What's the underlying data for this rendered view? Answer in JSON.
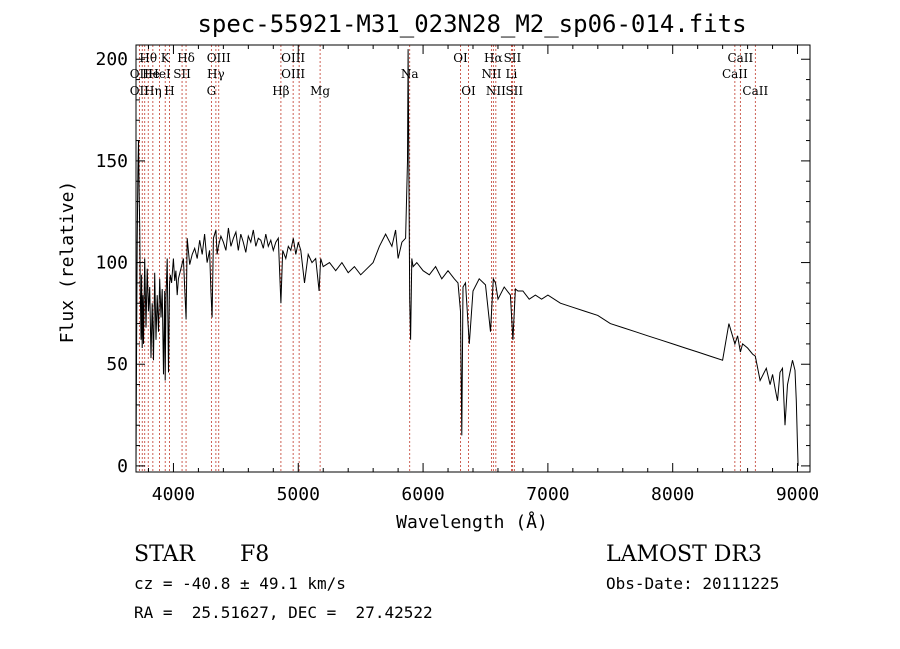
{
  "chart_data": {
    "type": "line",
    "title": "spec-55921-M31_023N28_M2_sp06-014.fits",
    "xlabel": "Wavelength (Å)",
    "ylabel": "Flux (relative)",
    "xlim": [
      3700,
      9100
    ],
    "ylim": [
      -3,
      207
    ],
    "xticks": [
      4000,
      5000,
      6000,
      7000,
      8000,
      9000
    ],
    "yticks": [
      0,
      50,
      100,
      150,
      200
    ],
    "series": [
      {
        "name": "flux",
        "x": [
          3700,
          3705,
          3710,
          3715,
          3720,
          3725,
          3730,
          3735,
          3740,
          3745,
          3750,
          3755,
          3760,
          3770,
          3780,
          3790,
          3800,
          3810,
          3820,
          3830,
          3840,
          3850,
          3860,
          3870,
          3880,
          3890,
          3900,
          3910,
          3920,
          3930,
          3934,
          3940,
          3950,
          3960,
          3968,
          3975,
          3985,
          4000,
          4010,
          4020,
          4030,
          4040,
          4060,
          4080,
          4101,
          4110,
          4130,
          4150,
          4170,
          4190,
          4210,
          4230,
          4250,
          4270,
          4290,
          4300,
          4310,
          4320,
          4340,
          4350,
          4360,
          4380,
          4400,
          4420,
          4440,
          4460,
          4480,
          4500,
          4520,
          4540,
          4560,
          4580,
          4600,
          4620,
          4640,
          4660,
          4680,
          4700,
          4720,
          4740,
          4760,
          4780,
          4800,
          4820,
          4840,
          4861,
          4875,
          4900,
          4920,
          4940,
          4960,
          4980,
          5000,
          5020,
          5050,
          5080,
          5110,
          5140,
          5167,
          5180,
          5200,
          5250,
          5300,
          5350,
          5400,
          5450,
          5500,
          5550,
          5600,
          5650,
          5700,
          5750,
          5780,
          5800,
          5830,
          5860,
          5875,
          5880,
          5893,
          5900,
          5910,
          5920,
          5950,
          6000,
          6050,
          6100,
          6150,
          6200,
          6250,
          6280,
          6300,
          6310,
          6320,
          6340,
          6370,
          6400,
          6450,
          6500,
          6540,
          6563,
          6580,
          6600,
          6650,
          6700,
          6720,
          6740,
          6760,
          6800,
          6850,
          6900,
          6950,
          7000,
          7100,
          7200,
          7300,
          7400,
          7500,
          7600,
          7700,
          7800,
          7900,
          8000,
          8100,
          8200,
          8300,
          8400,
          8450,
          8498,
          8520,
          8542,
          8560,
          8600,
          8640,
          8662,
          8700,
          8750,
          8780,
          8800,
          8820,
          8840,
          8860,
          8880,
          8900,
          8920,
          8940,
          8960,
          8980,
          8990,
          9000,
          9005
        ],
        "values": [
          0,
          60,
          110,
          145,
          160,
          135,
          118,
          82,
          62,
          94,
          58,
          84,
          60,
          102,
          68,
          97,
          76,
          88,
          53,
          80,
          52,
          95,
          62,
          84,
          66,
          92,
          73,
          87,
          45,
          86,
          42,
          83,
          102,
          46,
          89,
          94,
          90,
          102,
          91,
          96,
          84,
          92,
          97,
          102,
          72,
          112,
          99,
          104,
          107,
          102,
          111,
          104,
          114,
          100,
          106,
          86,
          73,
          112,
          116,
          104,
          108,
          113,
          110,
          106,
          117,
          108,
          112,
          115,
          106,
          114,
          110,
          105,
          113,
          110,
          116,
          108,
          112,
          111,
          107,
          114,
          108,
          111,
          106,
          110,
          112,
          80,
          106,
          102,
          108,
          106,
          112,
          104,
          110,
          106,
          90,
          104,
          100,
          102,
          86,
          102,
          98,
          100,
          96,
          100,
          95,
          98,
          94,
          97,
          100,
          108,
          114,
          108,
          116,
          102,
          110,
          112,
          150,
          205,
          82,
          62,
          102,
          98,
          100,
          96,
          94,
          98,
          92,
          96,
          92,
          90,
          76,
          15,
          88,
          90,
          60,
          86,
          92,
          89,
          66,
          92,
          90,
          82,
          88,
          84,
          62,
          87,
          86,
          86,
          82,
          84,
          82,
          84,
          80,
          78,
          76,
          74,
          70,
          68,
          66,
          64,
          62,
          60,
          58,
          56,
          54,
          52,
          70,
          60,
          64,
          56,
          60,
          58,
          55,
          54,
          42,
          48,
          40,
          45,
          38,
          32,
          46,
          48,
          20,
          40,
          46,
          52,
          47,
          32,
          10,
          0
        ]
      }
    ],
    "line_labels": [
      {
        "label": "OII",
        "wavelength": 3727,
        "row": 2
      },
      {
        "label": "Hθ",
        "wavelength": 3798,
        "row": 1
      },
      {
        "label": "OII",
        "wavelength": 3727,
        "row": 3
      },
      {
        "label": "He",
        "wavelength": 3820,
        "row": 2
      },
      {
        "label": "Hη",
        "wavelength": 3835,
        "row": 3
      },
      {
        "label": "K",
        "wavelength": 3934,
        "row": 1
      },
      {
        "label": "HeI",
        "wavelength": 3889,
        "row": 2
      },
      {
        "label": "H",
        "wavelength": 3968,
        "row": 3
      },
      {
        "label": "Hδ",
        "wavelength": 4101,
        "row": 1
      },
      {
        "label": "SII",
        "wavelength": 4069,
        "row": 2
      },
      {
        "label": "OIII",
        "wavelength": 4363,
        "row": 1
      },
      {
        "label": "Hγ",
        "wavelength": 4340,
        "row": 2
      },
      {
        "label": "G",
        "wavelength": 4304,
        "row": 3
      },
      {
        "label": "OIII",
        "wavelength": 4959,
        "row": 1
      },
      {
        "label": "OIII",
        "wavelength": 4959,
        "row": 2
      },
      {
        "label": "Hβ",
        "wavelength": 4861,
        "row": 3
      },
      {
        "label": "Mg",
        "wavelength": 5175,
        "row": 3
      },
      {
        "label": "Na",
        "wavelength": 5893,
        "row": 2
      },
      {
        "label": "OI",
        "wavelength": 6300,
        "row": 1
      },
      {
        "label": "OI",
        "wavelength": 6364,
        "row": 3
      },
      {
        "label": "Hα",
        "wavelength": 6563,
        "row": 1
      },
      {
        "label": "SII",
        "wavelength": 6716,
        "row": 1
      },
      {
        "label": "NII",
        "wavelength": 6548,
        "row": 2
      },
      {
        "label": "Li",
        "wavelength": 6708,
        "row": 2
      },
      {
        "label": "NII",
        "wavelength": 6583,
        "row": 3
      },
      {
        "label": "SII",
        "wavelength": 6731,
        "row": 3
      },
      {
        "label": "CaII",
        "wavelength": 8542,
        "row": 1
      },
      {
        "label": "CaII",
        "wavelength": 8498,
        "row": 2
      },
      {
        "label": "CaII",
        "wavelength": 8662,
        "row": 3
      }
    ],
    "line_markers": [
      3727,
      3750,
      3770,
      3798,
      3835,
      3889,
      3934,
      3968,
      4069,
      4101,
      4304,
      4340,
      4363,
      4861,
      4959,
      5007,
      5175,
      5893,
      6300,
      6364,
      6548,
      6563,
      6583,
      6708,
      6716,
      6731,
      8498,
      8542,
      8662
    ]
  },
  "info": {
    "object_class": "STAR",
    "subclass": "F8",
    "survey": "LAMOST DR3",
    "redshift": "cz = -40.8 ± 49.1 km/s",
    "obs_date": "Obs-Date: 20111225",
    "coords": "RA =  25.51627, DEC =  27.42522"
  },
  "colors": {
    "marker": "#c0392b",
    "line": "#000000"
  }
}
